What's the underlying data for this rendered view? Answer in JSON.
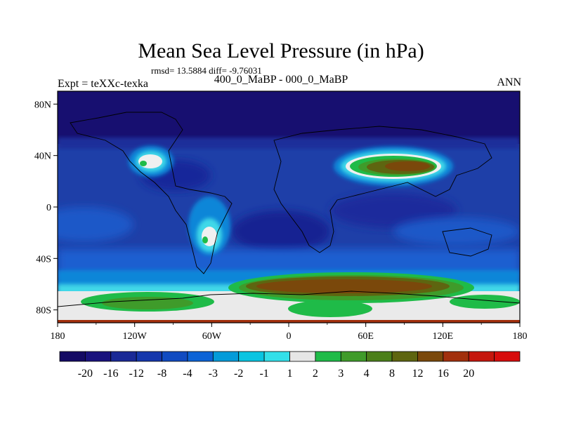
{
  "chart_data": {
    "type": "heatmap",
    "title": "Mean Sea Level Pressure (in hPa)",
    "stats": "rmsd= 13.5884 diff= -9.76031",
    "left_label": "Expt = teXXc-texka",
    "center_label": "400_0_MaBP - 000_0_MaBP",
    "right_label": "ANN",
    "x_ticks": [
      "180",
      "120W",
      "60W",
      "0",
      "60E",
      "120E",
      "180"
    ],
    "y_ticks": [
      "80N",
      "40N",
      "0",
      "40S",
      "80S"
    ],
    "xlim": [
      -180,
      180
    ],
    "ylim": [
      -90,
      90
    ],
    "colorbar_labels": [
      "-20",
      "-16",
      "-12",
      "-8",
      "-4",
      "-3",
      "-2",
      "-1",
      "1",
      "2",
      "3",
      "4",
      "8",
      "12",
      "16",
      "20"
    ],
    "colorbar_colors": [
      "#140a64",
      "#19127d",
      "#1a2996",
      "#1537ac",
      "#114bc1",
      "#0c63d6",
      "#049bd9",
      "#09c4e1",
      "#33dfe9",
      "#e6e6e6",
      "#1fbb48",
      "#3f9b2a",
      "#4b7f1a",
      "#5e6510",
      "#7a480b",
      "#a2300d",
      "#c5160d",
      "#d70c0c"
    ],
    "background_color": "#1e3fa8"
  }
}
